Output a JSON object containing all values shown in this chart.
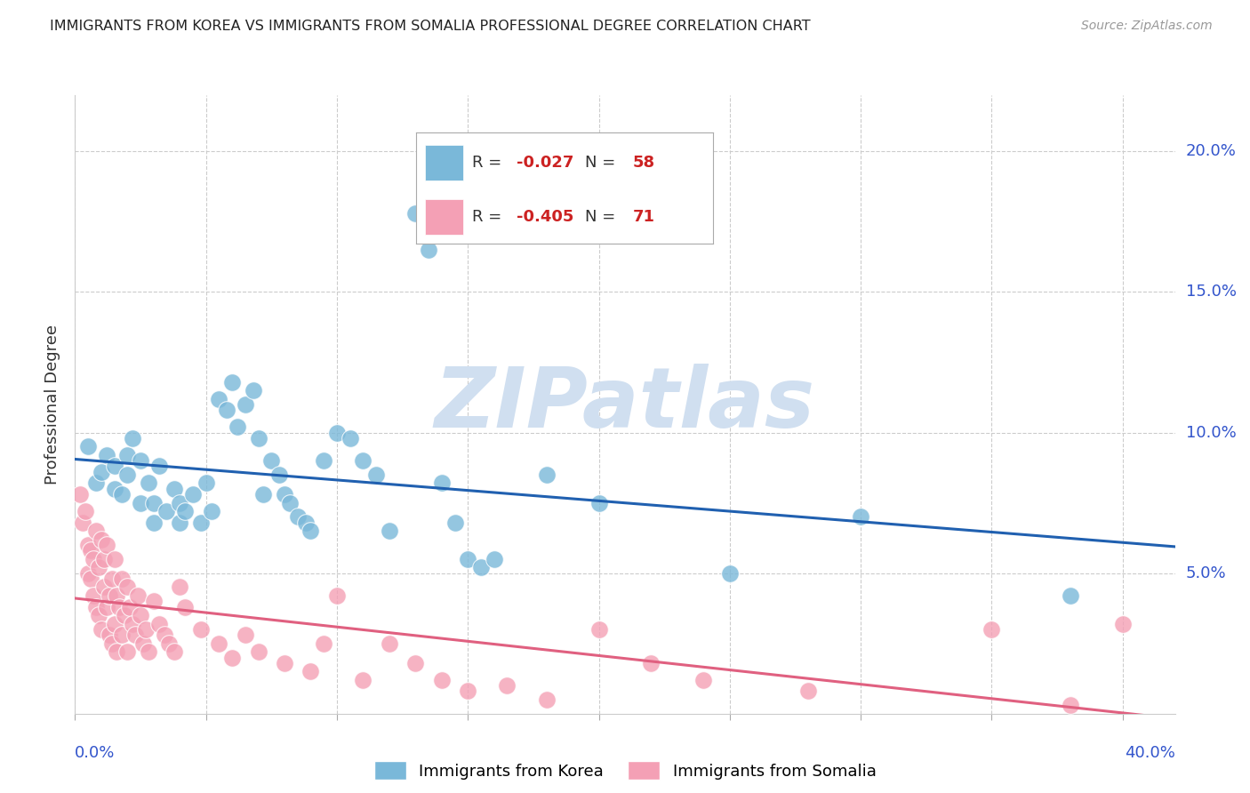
{
  "title": "IMMIGRANTS FROM KOREA VS IMMIGRANTS FROM SOMALIA PROFESSIONAL DEGREE CORRELATION CHART",
  "source": "Source: ZipAtlas.com",
  "ylabel": "Professional Degree",
  "yaxis_labels": [
    "20.0%",
    "15.0%",
    "10.0%",
    "5.0%"
  ],
  "yaxis_values": [
    0.2,
    0.15,
    0.1,
    0.05
  ],
  "xlim": [
    0.0,
    0.42
  ],
  "ylim": [
    0.0,
    0.22
  ],
  "korea_R": "-0.027",
  "korea_N": "58",
  "somalia_R": "-0.405",
  "somalia_N": "71",
  "korea_color": "#7ab8d9",
  "somalia_color": "#f4a0b5",
  "trendline_korea_color": "#2060b0",
  "trendline_somalia_color": "#e06080",
  "watermark_color": "#d0dff0",
  "korea_points": [
    [
      0.005,
      0.095
    ],
    [
      0.008,
      0.082
    ],
    [
      0.01,
      0.086
    ],
    [
      0.012,
      0.092
    ],
    [
      0.015,
      0.088
    ],
    [
      0.015,
      0.08
    ],
    [
      0.018,
      0.078
    ],
    [
      0.02,
      0.092
    ],
    [
      0.02,
      0.085
    ],
    [
      0.022,
      0.098
    ],
    [
      0.025,
      0.075
    ],
    [
      0.025,
      0.09
    ],
    [
      0.028,
      0.082
    ],
    [
      0.03,
      0.075
    ],
    [
      0.03,
      0.068
    ],
    [
      0.032,
      0.088
    ],
    [
      0.035,
      0.072
    ],
    [
      0.038,
      0.08
    ],
    [
      0.04,
      0.075
    ],
    [
      0.04,
      0.068
    ],
    [
      0.042,
      0.072
    ],
    [
      0.045,
      0.078
    ],
    [
      0.048,
      0.068
    ],
    [
      0.05,
      0.082
    ],
    [
      0.052,
      0.072
    ],
    [
      0.055,
      0.112
    ],
    [
      0.058,
      0.108
    ],
    [
      0.06,
      0.118
    ],
    [
      0.062,
      0.102
    ],
    [
      0.065,
      0.11
    ],
    [
      0.068,
      0.115
    ],
    [
      0.07,
      0.098
    ],
    [
      0.072,
      0.078
    ],
    [
      0.075,
      0.09
    ],
    [
      0.078,
      0.085
    ],
    [
      0.08,
      0.078
    ],
    [
      0.082,
      0.075
    ],
    [
      0.085,
      0.07
    ],
    [
      0.088,
      0.068
    ],
    [
      0.09,
      0.065
    ],
    [
      0.095,
      0.09
    ],
    [
      0.1,
      0.1
    ],
    [
      0.105,
      0.098
    ],
    [
      0.11,
      0.09
    ],
    [
      0.115,
      0.085
    ],
    [
      0.12,
      0.065
    ],
    [
      0.13,
      0.178
    ],
    [
      0.135,
      0.165
    ],
    [
      0.14,
      0.082
    ],
    [
      0.145,
      0.068
    ],
    [
      0.15,
      0.055
    ],
    [
      0.155,
      0.052
    ],
    [
      0.16,
      0.055
    ],
    [
      0.18,
      0.085
    ],
    [
      0.2,
      0.075
    ],
    [
      0.25,
      0.05
    ],
    [
      0.3,
      0.07
    ],
    [
      0.38,
      0.042
    ]
  ],
  "somalia_points": [
    [
      0.002,
      0.078
    ],
    [
      0.003,
      0.068
    ],
    [
      0.004,
      0.072
    ],
    [
      0.005,
      0.06
    ],
    [
      0.005,
      0.05
    ],
    [
      0.006,
      0.058
    ],
    [
      0.006,
      0.048
    ],
    [
      0.007,
      0.055
    ],
    [
      0.007,
      0.042
    ],
    [
      0.008,
      0.065
    ],
    [
      0.008,
      0.038
    ],
    [
      0.009,
      0.052
    ],
    [
      0.009,
      0.035
    ],
    [
      0.01,
      0.062
    ],
    [
      0.01,
      0.03
    ],
    [
      0.011,
      0.055
    ],
    [
      0.011,
      0.045
    ],
    [
      0.012,
      0.06
    ],
    [
      0.012,
      0.038
    ],
    [
      0.013,
      0.042
    ],
    [
      0.013,
      0.028
    ],
    [
      0.014,
      0.048
    ],
    [
      0.014,
      0.025
    ],
    [
      0.015,
      0.055
    ],
    [
      0.015,
      0.032
    ],
    [
      0.016,
      0.042
    ],
    [
      0.016,
      0.022
    ],
    [
      0.017,
      0.038
    ],
    [
      0.018,
      0.048
    ],
    [
      0.018,
      0.028
    ],
    [
      0.019,
      0.035
    ],
    [
      0.02,
      0.045
    ],
    [
      0.02,
      0.022
    ],
    [
      0.021,
      0.038
    ],
    [
      0.022,
      0.032
    ],
    [
      0.023,
      0.028
    ],
    [
      0.024,
      0.042
    ],
    [
      0.025,
      0.035
    ],
    [
      0.026,
      0.025
    ],
    [
      0.027,
      0.03
    ],
    [
      0.028,
      0.022
    ],
    [
      0.03,
      0.04
    ],
    [
      0.032,
      0.032
    ],
    [
      0.034,
      0.028
    ],
    [
      0.036,
      0.025
    ],
    [
      0.038,
      0.022
    ],
    [
      0.04,
      0.045
    ],
    [
      0.042,
      0.038
    ],
    [
      0.048,
      0.03
    ],
    [
      0.055,
      0.025
    ],
    [
      0.06,
      0.02
    ],
    [
      0.065,
      0.028
    ],
    [
      0.07,
      0.022
    ],
    [
      0.08,
      0.018
    ],
    [
      0.09,
      0.015
    ],
    [
      0.095,
      0.025
    ],
    [
      0.1,
      0.042
    ],
    [
      0.11,
      0.012
    ],
    [
      0.12,
      0.025
    ],
    [
      0.13,
      0.018
    ],
    [
      0.14,
      0.012
    ],
    [
      0.15,
      0.008
    ],
    [
      0.165,
      0.01
    ],
    [
      0.18,
      0.005
    ],
    [
      0.2,
      0.03
    ],
    [
      0.22,
      0.018
    ],
    [
      0.24,
      0.012
    ],
    [
      0.28,
      0.008
    ],
    [
      0.35,
      0.03
    ],
    [
      0.38,
      0.003
    ],
    [
      0.4,
      0.032
    ]
  ]
}
